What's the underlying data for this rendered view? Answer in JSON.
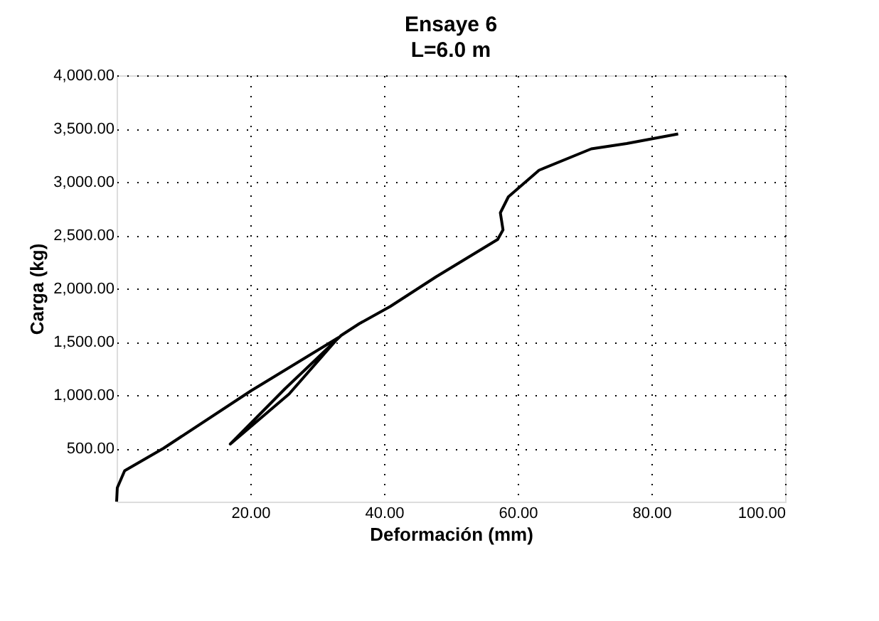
{
  "chart_data": {
    "type": "line",
    "title": "Ensaye 6",
    "subtitle": "L=6.0 m",
    "xlabel": "Deformación (mm)",
    "ylabel": "Carga (kg)",
    "series": [
      {
        "color": "#000000",
        "x": [
          0,
          0.1,
          1.2,
          7.0,
          20.1,
          33.2,
          25.8,
          17.0,
          25.2,
          33.6,
          36.3,
          40.9,
          47.8,
          57.0,
          57.8,
          57.4,
          58.6,
          63.2,
          71.0,
          76.3,
          84.0
        ],
        "values": [
          0,
          130,
          290,
          500,
          1040,
          1540,
          1010,
          540,
          1060,
          1560,
          1670,
          1830,
          2110,
          2460,
          2550,
          2710,
          2860,
          3110,
          3310,
          3360,
          3450
        ]
      }
    ],
    "xlim": [
      0,
      100
    ],
    "ylim": [
      0,
      4000
    ],
    "xticks": [
      {
        "value": 20,
        "label": "20.00"
      },
      {
        "value": 40,
        "label": "40.00"
      },
      {
        "value": 60,
        "label": "60.00"
      },
      {
        "value": 80,
        "label": "80.00"
      },
      {
        "value": 100,
        "label": "100.00"
      }
    ],
    "yticks": [
      {
        "value": 500,
        "label": "500.00"
      },
      {
        "value": 1000,
        "label": "1,000.00"
      },
      {
        "value": 1500,
        "label": "1,500.00"
      },
      {
        "value": 2000,
        "label": "2,000.00"
      },
      {
        "value": 2500,
        "label": "2,500.00"
      },
      {
        "value": 3000,
        "label": "3,000.00"
      },
      {
        "value": 3500,
        "label": "3,500.00"
      },
      {
        "value": 4000,
        "label": "4,000.00"
      }
    ],
    "grid": true,
    "marker": "none",
    "line_style": "solid"
  }
}
